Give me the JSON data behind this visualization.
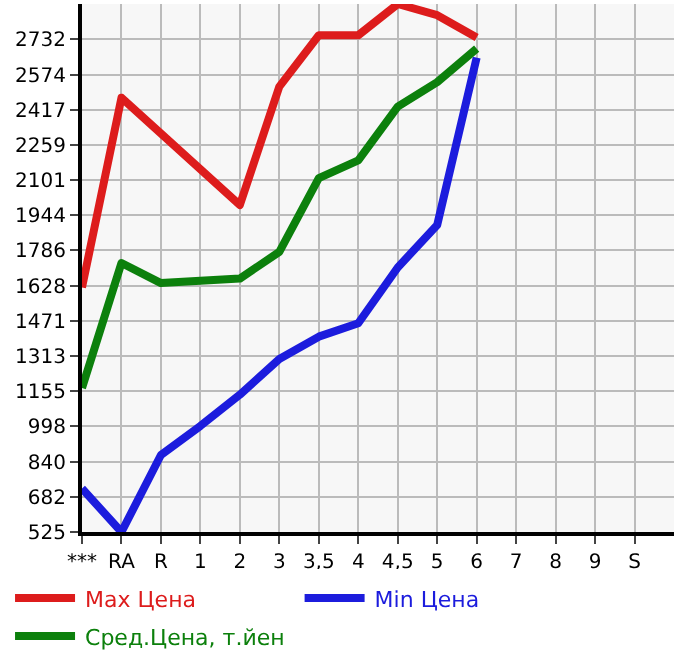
{
  "chart_data": {
    "type": "line",
    "categories": [
      "***",
      "RA",
      "R",
      "1",
      "2",
      "3",
      "3,5",
      "4",
      "4,5",
      "5",
      "6",
      "7",
      "8",
      "9",
      "S"
    ],
    "series": [
      {
        "name": "Max Цена",
        "color": "#dd1c1c",
        "values": [
          1620,
          2470,
          2310,
          2150,
          1990,
          2520,
          2750,
          2750,
          2890,
          2840,
          2740,
          null,
          null,
          null,
          null
        ]
      },
      {
        "name": "Min Цена",
        "color": "#1c1cdd",
        "values": [
          720,
          525,
          870,
          1000,
          1140,
          1300,
          1400,
          1460,
          1710,
          1900,
          2650,
          null,
          null,
          null,
          null
        ]
      },
      {
        "name": "Сред.Цена, т.йен",
        "color": "#0c800c",
        "values": [
          1170,
          1730,
          1640,
          1650,
          1660,
          1780,
          2110,
          2190,
          2430,
          2540,
          2690,
          null,
          null,
          null,
          null
        ]
      }
    ],
    "ylim": [
      525,
      2890
    ],
    "yticks": [
      525,
      682,
      840,
      998,
      1155,
      1313,
      1471,
      1628,
      1786,
      1944,
      2101,
      2259,
      2417,
      2574,
      2732
    ],
    "grid": true,
    "legend": "bottom",
    "marker": "none",
    "line_style": "solid"
  }
}
